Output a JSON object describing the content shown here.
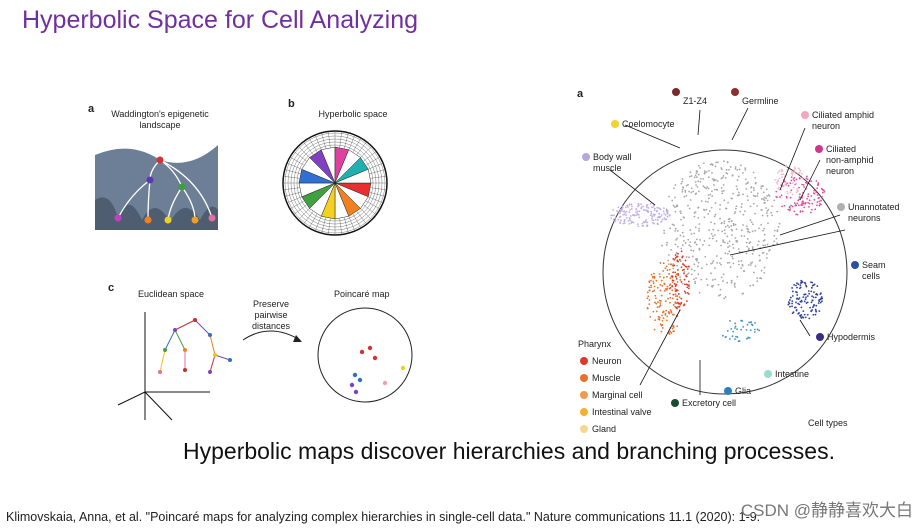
{
  "title": "Hyperbolic Space for Cell Analyzing",
  "figure_left": {
    "panel_a": {
      "letter": "a",
      "caption": [
        "Waddington's epigenetic",
        "landscape"
      ]
    },
    "panel_b": {
      "letter": "b",
      "caption": [
        "Hyperbolic space"
      ]
    },
    "panel_c": {
      "letter": "c",
      "euclidean": "Euclidean space",
      "arrow_label": [
        "Preserve",
        "pairwise",
        "distances"
      ],
      "poincare": "Poincaré map"
    }
  },
  "figure_right": {
    "letter": "a",
    "labels": [
      {
        "lines": [
          "Z1-Z4"
        ],
        "color": "#7b2a2a"
      },
      {
        "lines": [
          "Germline"
        ],
        "color": "#8b3030"
      },
      {
        "lines": [
          "Coelomocyte"
        ],
        "color": "#f2d230"
      },
      {
        "lines": [
          "Ciliated amphid",
          "neuron"
        ],
        "color": "#f4a6c0"
      },
      {
        "lines": [
          "Body wall",
          "muscle"
        ],
        "color": "#b9a6e0"
      },
      {
        "lines": [
          "Ciliated",
          "non-amphid",
          "neuron"
        ],
        "color": "#d4358c"
      },
      {
        "lines": [
          "Unannotated",
          "neurons"
        ],
        "color": "#b0b0b0"
      },
      {
        "lines": [
          "Seam",
          "cells"
        ],
        "color": "#2a4fa0"
      },
      {
        "lines": [
          "Hypodermis"
        ],
        "color": "#3a2a8a"
      },
      {
        "lines": [
          "Intestine"
        ],
        "color": "#9adcd0"
      },
      {
        "lines": [
          "Glia"
        ],
        "color": "#2a7fc0"
      },
      {
        "lines": [
          "Excretory cell"
        ],
        "color": "#1a4a30"
      }
    ],
    "legend_title": "Pharynx",
    "legend": [
      {
        "name": "Neuron",
        "color": "#d93a2a"
      },
      {
        "name": "Muscle",
        "color": "#e8702a"
      },
      {
        "name": "Marginal cell",
        "color": "#f09a50"
      },
      {
        "name": "Intestinal valve",
        "color": "#f4b030"
      },
      {
        "name": "Gland",
        "color": "#f8d890"
      }
    ],
    "footer": "Cell types"
  },
  "caption": "Hyperbolic maps discover hierarchies and branching processes.",
  "citation": "Klimovskaia, Anna, et al. \"Poincaré maps for analyzing complex hierarchies in single-cell data.\" Nature communications 11.1 (2020): 1-9.",
  "watermark": "CSDN @静静喜欢大白"
}
